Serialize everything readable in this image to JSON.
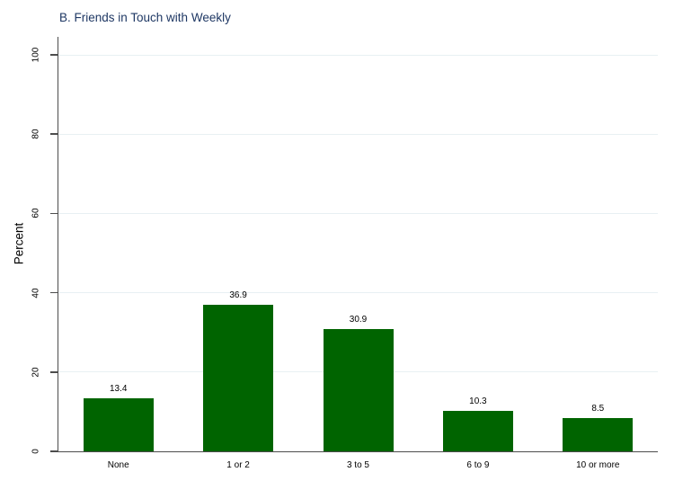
{
  "chart_data": {
    "type": "bar",
    "title": "B. Friends in Touch with Weekly",
    "categories": [
      "None",
      "1 or 2",
      "3 to 5",
      "6 to 9",
      "10 or more"
    ],
    "values": [
      13.4,
      36.9,
      30.9,
      10.3,
      8.5
    ],
    "bar_labels": [
      "13.4",
      "36.9",
      "30.9",
      "10.3",
      "8.5"
    ],
    "xlabel": "",
    "ylabel": "Percent",
    "ylim": [
      0,
      100
    ],
    "yticks": [
      0,
      20,
      40,
      60,
      80,
      100
    ],
    "ytick_labels": [
      "0",
      "20",
      "40",
      "60",
      "80",
      "100"
    ],
    "grid": true,
    "legend": "none",
    "bar_label_position": "above",
    "colors": {
      "bar": "#006400",
      "grid": "#e8f0f3",
      "axis": "#4d4d4d",
      "title": "#1f3864",
      "text": "#000000",
      "background": "#ffffff"
    }
  }
}
